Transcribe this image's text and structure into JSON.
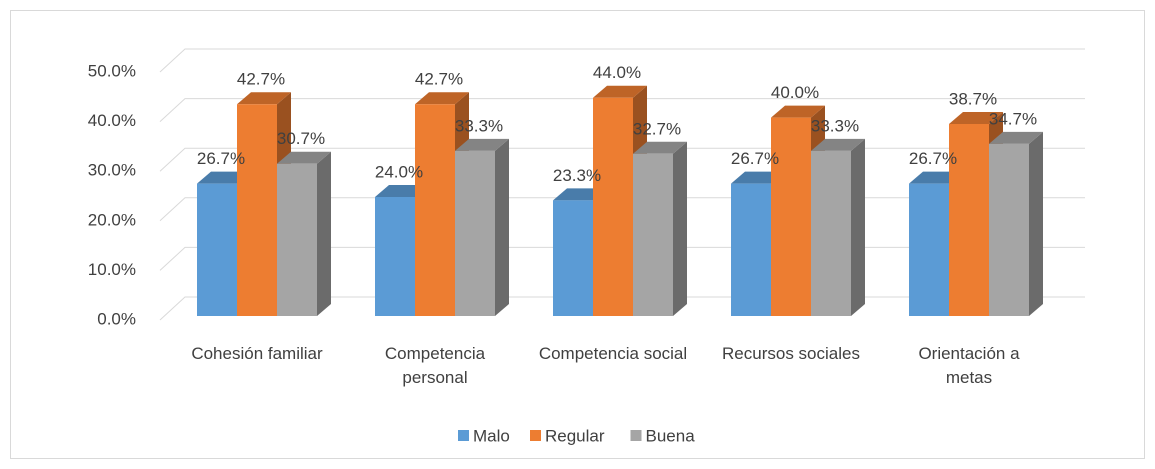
{
  "chart_data": {
    "type": "bar3d",
    "categories": [
      "Cohesión familiar",
      "Competencia personal",
      "Competencia social",
      "Recursos sociales",
      "Orientación a metas"
    ],
    "series": [
      {
        "name": "Malo",
        "color": "#5b9bd5",
        "values": [
          26.7,
          24.0,
          23.3,
          26.7,
          26.7
        ],
        "value_labels": [
          "26.7%",
          "24.0%",
          "23.3%",
          "26.7%",
          "26.7%"
        ]
      },
      {
        "name": "Regular",
        "color": "#ed7d31",
        "values": [
          42.7,
          42.7,
          44.0,
          40.0,
          38.7
        ],
        "value_labels": [
          "42.7%",
          "42.7%",
          "44.0%",
          "40.0%",
          "38.7%"
        ]
      },
      {
        "name": "Buena",
        "color": "#a5a5a5",
        "values": [
          30.7,
          33.3,
          32.7,
          33.3,
          34.7
        ],
        "value_labels": [
          "30.7%",
          "33.3%",
          "32.7%",
          "33.3%",
          "34.7%"
        ]
      }
    ],
    "ylim": [
      0,
      50
    ],
    "yticks": [
      {
        "value": 0,
        "label": "0.0%"
      },
      {
        "value": 10,
        "label": "10.0%"
      },
      {
        "value": 20,
        "label": "20.0%"
      },
      {
        "value": 30,
        "label": "30.0%"
      },
      {
        "value": 40,
        "label": "40.0%"
      },
      {
        "value": 50,
        "label": "50.0%"
      }
    ],
    "grid": true,
    "legend": "bottom"
  }
}
